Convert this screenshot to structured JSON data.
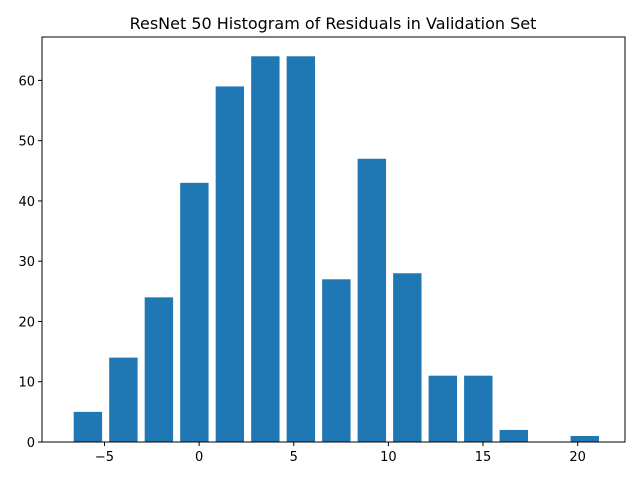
{
  "chart_data": {
    "type": "bar",
    "title": "ResNet 50 Histogram of Residuals in Validation Set",
    "xlabel": "",
    "ylabel": "",
    "x": [
      -5.875,
      -4.0,
      -2.125,
      -0.25,
      1.625,
      3.5,
      5.375,
      7.25,
      9.125,
      11.0,
      12.875,
      14.75,
      16.625,
      18.5,
      20.375
    ],
    "values": [
      5,
      14,
      24,
      43,
      59,
      64,
      64,
      27,
      47,
      28,
      11,
      11,
      2,
      0,
      1
    ],
    "bar_width": 1.5,
    "xlim": [
      -8.3,
      22.5
    ],
    "ylim": [
      0,
      67.2
    ],
    "xticks": [
      -5,
      0,
      5,
      10,
      15,
      20
    ],
    "xtick_labels": [
      "−5",
      "0",
      "5",
      "10",
      "15",
      "20"
    ],
    "yticks": [
      0,
      10,
      20,
      30,
      40,
      50,
      60
    ],
    "ytick_labels": [
      "0",
      "10",
      "20",
      "30",
      "40",
      "50",
      "60"
    ],
    "grid": false,
    "colors": {
      "bar": "#1f77b4",
      "axis": "#000000"
    }
  }
}
